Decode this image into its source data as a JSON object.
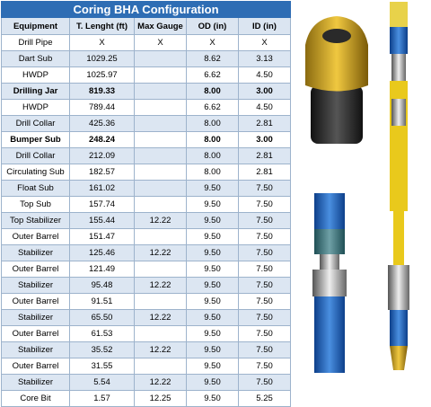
{
  "table": {
    "title": "Coring BHA Configuration",
    "headers": [
      "Equipment",
      "T. Lenght (ft)",
      "Max Gauge",
      "OD (in)",
      "ID (in)"
    ],
    "rows": [
      {
        "equipment": "Drill Pipe",
        "length": "X",
        "max_gauge": "X",
        "od": "X",
        "id": "X"
      },
      {
        "equipment": "Dart Sub",
        "length": "1029.25",
        "od": "8.62",
        "id": "3.13"
      },
      {
        "equipment": "HWDP",
        "length": "1025.97",
        "od": "6.62",
        "id": "4.50"
      },
      {
        "equipment": "Drilling Jar",
        "length": "819.33",
        "od": "8.00",
        "id": "3.00",
        "bold": true
      },
      {
        "equipment": "HWDP",
        "length": "789.44",
        "od": "6.62",
        "id": "4.50"
      },
      {
        "equipment": "Drill Collar",
        "length": "425.36",
        "od": "8.00",
        "id": "2.81"
      },
      {
        "equipment": "Bumper Sub",
        "length": "248.24",
        "od": "8.00",
        "id": "3.00",
        "bold": true
      },
      {
        "equipment": "Drill Collar",
        "length": "212.09",
        "od": "8.00",
        "id": "2.81"
      },
      {
        "equipment": "Circulating Sub",
        "length": "182.57",
        "od": "8.00",
        "id": "2.81"
      },
      {
        "equipment": "Float Sub",
        "length": "161.02",
        "od": "9.50",
        "id": "7.50"
      },
      {
        "equipment": "Top Sub",
        "length": "157.74",
        "od": "9.50",
        "id": "7.50"
      },
      {
        "equipment": "Top Stabilizer",
        "length": "155.44",
        "max_gauge": "12.22",
        "od": "9.50",
        "id": "7.50"
      },
      {
        "equipment": "Outer Barrel",
        "length": "151.47",
        "od": "9.50",
        "id": "7.50"
      },
      {
        "equipment": "Stabilizer",
        "length": "125.46",
        "max_gauge": "12.22",
        "od": "9.50",
        "id": "7.50"
      },
      {
        "equipment": "Outer Barrel",
        "length": "121.49",
        "od": "9.50",
        "id": "7.50"
      },
      {
        "equipment": "Stabilizer",
        "length": "95.48",
        "max_gauge": "12.22",
        "od": "9.50",
        "id": "7.50"
      },
      {
        "equipment": "Outer Barrel",
        "length": "91.51",
        "od": "9.50",
        "id": "7.50"
      },
      {
        "equipment": "Stabilizer",
        "length": "65.50",
        "max_gauge": "12.22",
        "od": "9.50",
        "id": "7.50"
      },
      {
        "equipment": "Outer Barrel",
        "length": "61.53",
        "od": "9.50",
        "id": "7.50"
      },
      {
        "equipment": "Stabilizer",
        "length": "35.52",
        "max_gauge": "12.22",
        "od": "9.50",
        "id": "7.50"
      },
      {
        "equipment": "Outer Barrel",
        "length": "31.55",
        "od": "9.50",
        "id": "7.50"
      },
      {
        "equipment": "Stabilizer",
        "length": "5.54",
        "max_gauge": "12.22",
        "od": "9.50",
        "id": "7.50"
      },
      {
        "equipment": "Core Bit",
        "length": "1.57",
        "max_gauge": "12.25",
        "od": "9.50",
        "id": "5.25"
      }
    ]
  }
}
